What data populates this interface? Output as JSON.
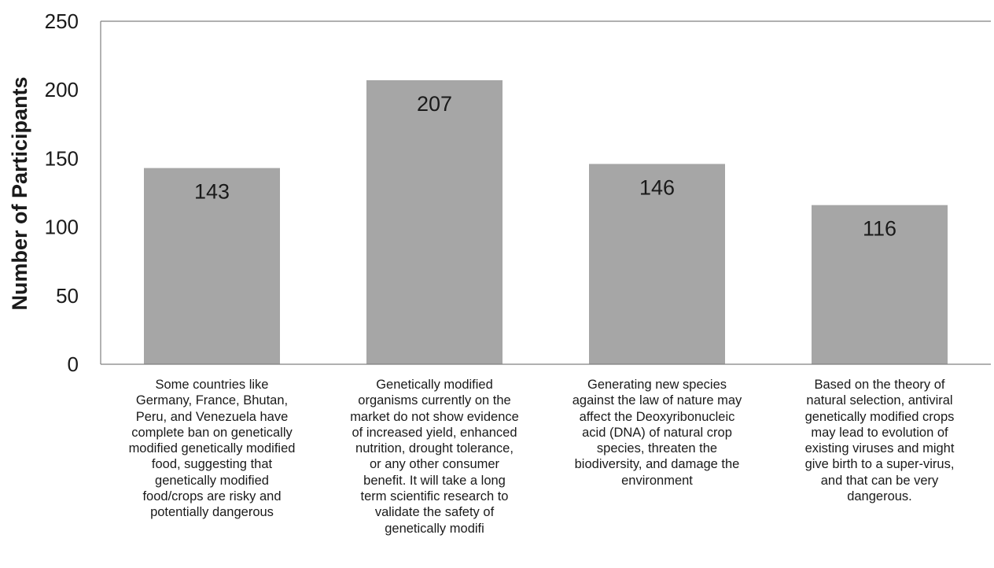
{
  "chart_data": {
    "type": "bar",
    "title": "",
    "xlabel": "",
    "ylabel": "Number of Participants",
    "ylim": [
      0,
      250
    ],
    "yticks": [
      0,
      50,
      100,
      150,
      200,
      250
    ],
    "grid": false,
    "colors": {
      "bar": "#a6a6a6",
      "axis": "#808080"
    },
    "categories": [
      "Some countries like\nGermany, France, Bhutan,\nPeru, and Venezuela have\ncomplete ban on genetically\nmodified genetically modified\nfood, suggesting that\ngenetically modified\nfood/crops are risky and\npotentially dangerous",
      "Genetically modified\norganisms currently on the\nmarket do not show evidence\nof increased yield, enhanced\nnutrition, drought tolerance,\nor any other consumer\nbenefit. It will take a long\nterm scientific research to\nvalidate the safety of\ngenetically modifi",
      "Generating new species\nagainst the law of nature may\naffect the Deoxyribonucleic\nacid (DNA) of natural crop\nspecies, threaten the\nbiodiversity, and damage the\nenvironment",
      "Based on the theory of\nnatural selection, antiviral\ngenetically modified crops\nmay lead to evolution of\nexisting viruses and might\ngive birth to a super-virus,\nand that can be very\ndangerous."
    ],
    "values": [
      143,
      207,
      146,
      116
    ],
    "data_labels": [
      "143",
      "207",
      "146",
      "116"
    ]
  }
}
